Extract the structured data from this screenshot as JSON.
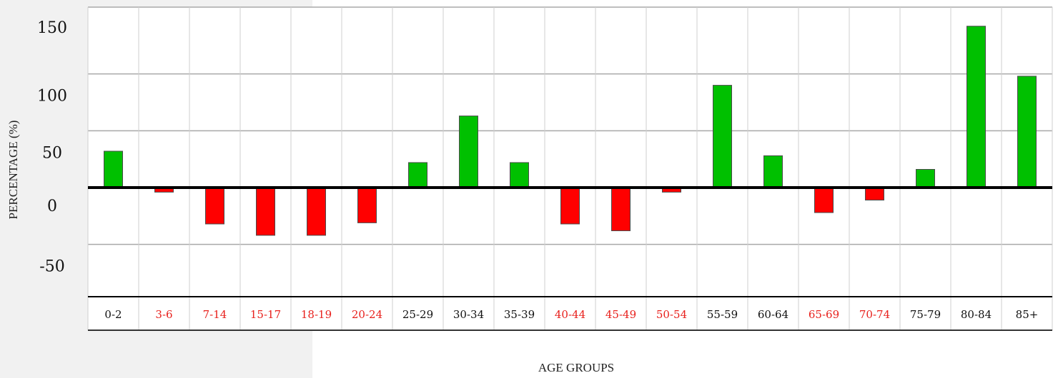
{
  "chart_data": {
    "type": "bar",
    "title": "",
    "xlabel": "AGE GROUPS",
    "ylabel": "PERCENTAGE (%)",
    "ylim": [
      -50,
      150
    ],
    "yticks": [
      "150",
      "100",
      "50",
      "0",
      "-50"
    ],
    "grid": true,
    "categories": [
      "0-2",
      "3-6",
      "7-14",
      "15-17",
      "18-19",
      "20-24",
      "25-29",
      "30-34",
      "35-39",
      "40-44",
      "45-49",
      "50-54",
      "55-59",
      "60-64",
      "65-69",
      "70-74",
      "75-79",
      "80-84",
      "85+"
    ],
    "values": [
      32,
      -4,
      -32,
      -42,
      -42,
      -31,
      22,
      63,
      22,
      -32,
      -38,
      -4,
      90,
      28,
      -22,
      -11,
      16,
      142,
      98
    ],
    "colors": {
      "positive": "#00c000",
      "negative": "#ff0000",
      "positive_label": "#111111",
      "negative_label": "#e8201c"
    }
  }
}
